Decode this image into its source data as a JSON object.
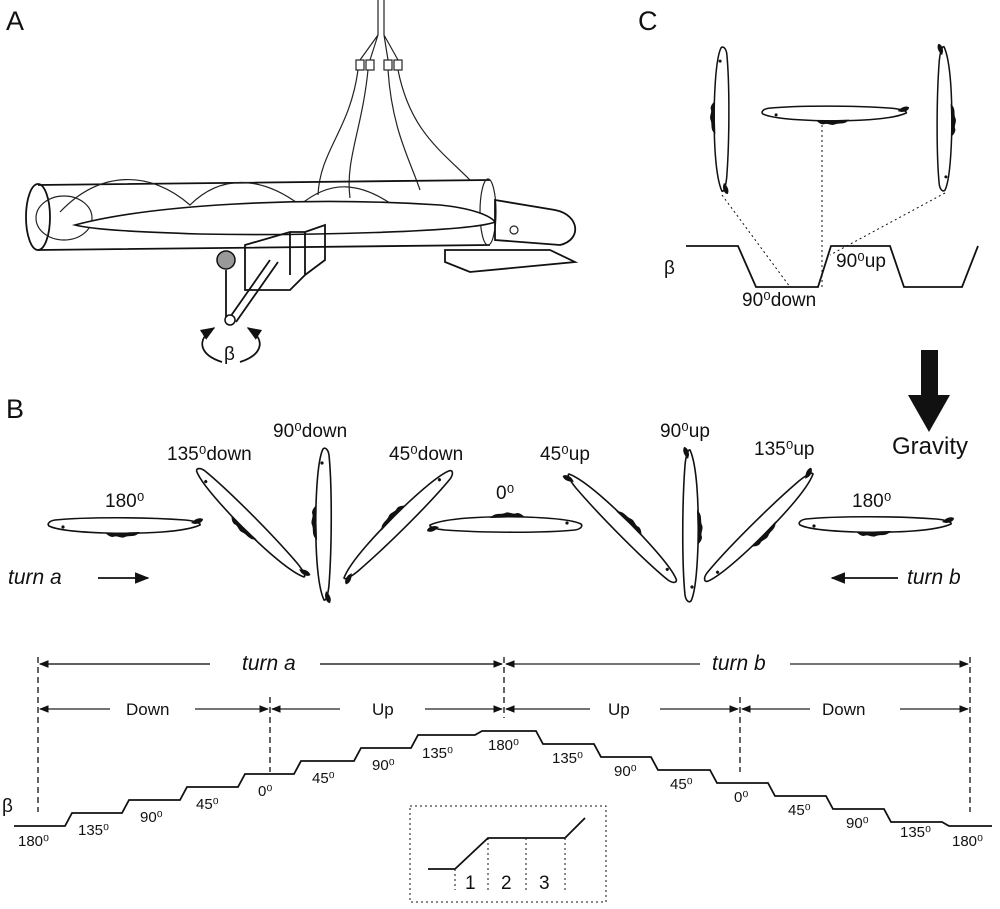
{
  "panels": {
    "a": "A",
    "b": "B",
    "c": "C"
  },
  "panel_a": {
    "beta": "β"
  },
  "panel_c": {
    "beta": "β",
    "down_label": "90⁰down",
    "up_label": "90⁰up"
  },
  "gravity": {
    "label": "Gravity"
  },
  "panel_b": {
    "orientations": [
      "180⁰",
      "135⁰down",
      "90⁰down",
      "45⁰down",
      "0⁰",
      "45⁰up",
      "90⁰up",
      "135⁰up",
      "180⁰"
    ],
    "turn_a": "turn a",
    "turn_b": "turn b",
    "beta": "β",
    "spans": {
      "turn_a": "turn a",
      "turn_b": "turn b",
      "down_left": "Down",
      "up_left": "Up",
      "up_right": "Up",
      "down_right": "Down"
    },
    "steps": [
      "180⁰",
      "135⁰",
      "90⁰",
      "45⁰",
      "0⁰",
      "45⁰",
      "90⁰",
      "135⁰",
      "180⁰",
      "135⁰",
      "90⁰",
      "45⁰",
      "0⁰",
      "45⁰",
      "90⁰",
      "135⁰",
      "180⁰"
    ],
    "inset": [
      "1",
      "2",
      "3"
    ]
  },
  "colors": {
    "ink": "#111111",
    "background": "#ffffff"
  }
}
